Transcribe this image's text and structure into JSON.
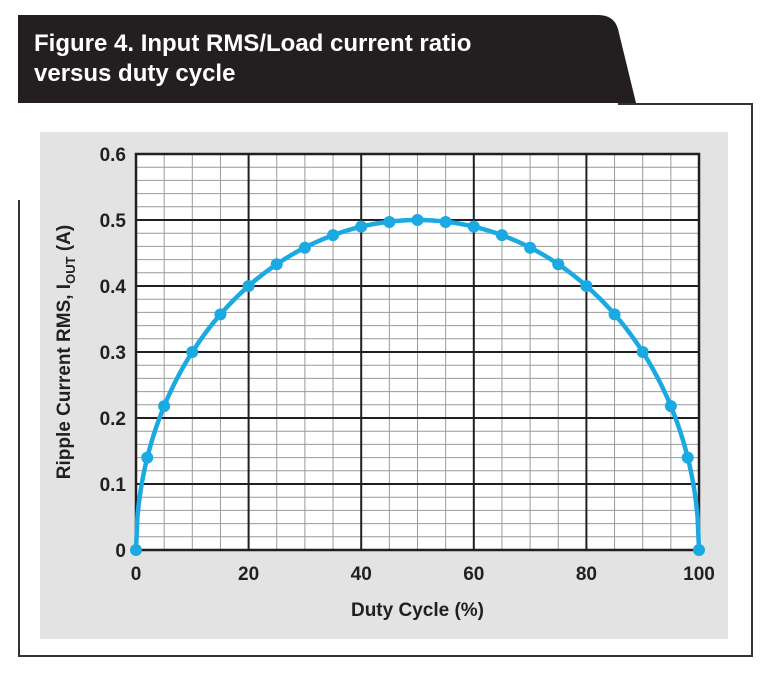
{
  "figure": {
    "title": "Figure 4. Input RMS/Load current ratio\n versus duty cycle"
  },
  "chart_data": {
    "type": "line",
    "title": "Figure 4. Input RMS/Load current ratio versus duty cycle",
    "xlabel": "Duty Cycle (%)",
    "ylabel_main": "Ripple Current RMS, I",
    "ylabel_sub": "OUT",
    "ylabel_tail": " (A)",
    "xlim": [
      0,
      100
    ],
    "ylim": [
      0,
      0.6
    ],
    "x_ticks": [
      0,
      20,
      40,
      60,
      80,
      100
    ],
    "y_ticks": [
      0,
      0.1,
      0.2,
      0.3,
      0.4,
      0.5,
      0.6
    ],
    "x_tick_labels": [
      "0",
      "20",
      "40",
      "60",
      "80",
      "100"
    ],
    "y_tick_labels": [
      "0",
      "0.1",
      "0.2",
      "0.3",
      "0.4",
      "0.5",
      "0.6"
    ],
    "x_minor_step": 5,
    "y_minor_step": 0.02,
    "grid": true,
    "line_color": "#1ba9e1",
    "series": [
      {
        "x": [
          0,
          2,
          5,
          10,
          15,
          20,
          25,
          30,
          35,
          40,
          45,
          50,
          55,
          60,
          65,
          70,
          75,
          80,
          85,
          90,
          95,
          98,
          100
        ],
        "y": [
          0,
          0.14,
          0.218,
          0.3,
          0.357,
          0.4,
          0.433,
          0.458,
          0.477,
          0.49,
          0.497,
          0.5,
          0.497,
          0.49,
          0.477,
          0.458,
          0.433,
          0.4,
          0.357,
          0.3,
          0.218,
          0.14,
          0
        ]
      }
    ]
  }
}
